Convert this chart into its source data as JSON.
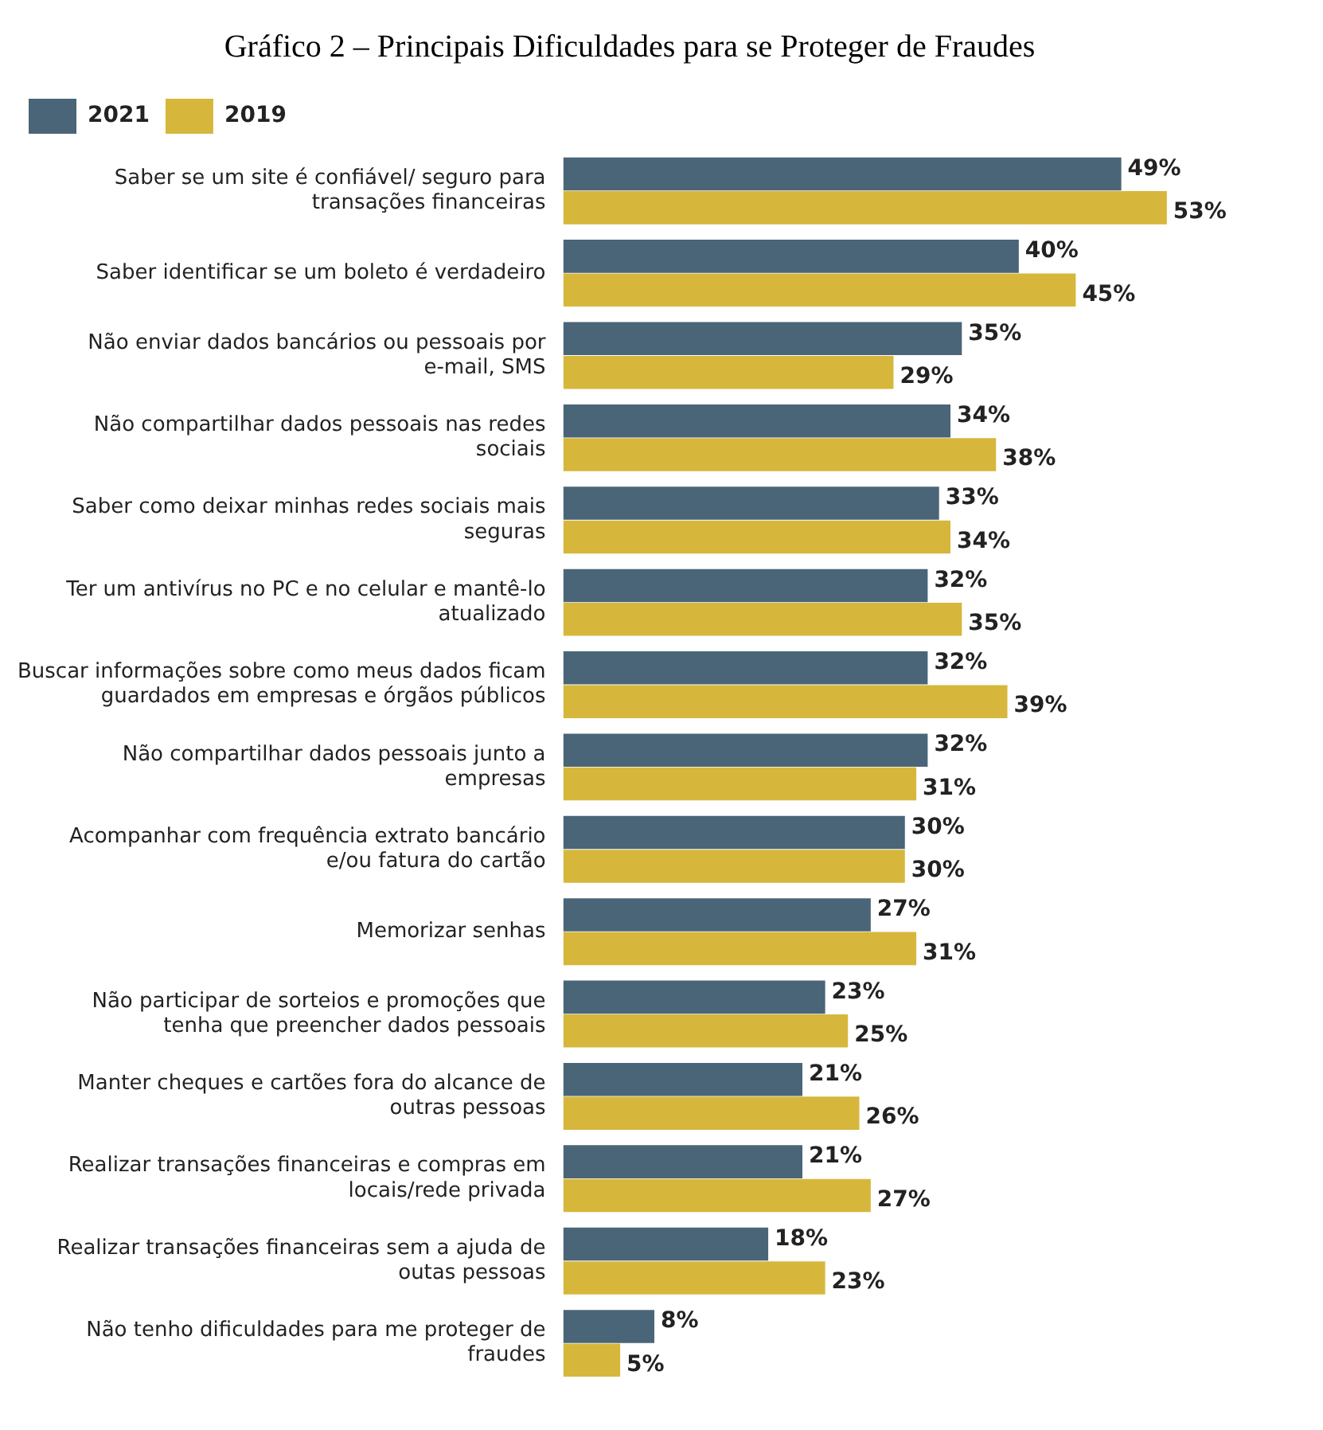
{
  "chart_data": {
    "type": "bar",
    "orientation": "horizontal",
    "title": "Gráfico 2 – Principais Dificuldades para se Proteger de Fraudes",
    "categories": [
      "Saber se um site é confiável/ seguro para transações financeiras",
      "Saber identificar se um boleto é verdadeiro",
      "Não enviar dados bancários ou pessoais por e-mail, SMS",
      "Não compartilhar dados pessoais nas redes sociais",
      "Saber como deixar minhas redes sociais mais seguras",
      "Ter um antivírus no PC e no celular e mantê-lo atualizado",
      "Buscar informações sobre como meus dados ficam guardados em empresas e órgãos públicos",
      "Não compartilhar dados pessoais junto a empresas",
      "Acompanhar com frequência extrato bancário e/ou fatura do cartão",
      "Memorizar senhas",
      "Não participar de sorteios e promoções que tenha que preencher dados pessoais",
      "Manter cheques e cartões fora do alcance de outras pessoas",
      "Realizar transações financeiras e compras em locais/rede privada",
      "Realizar transações financeiras sem a ajuda de outas pessoas",
      "Não tenho dificuldades para me proteger de fraudes"
    ],
    "series": [
      {
        "name": "2021",
        "color": "#4a6577",
        "values": [
          49,
          40,
          35,
          34,
          33,
          32,
          32,
          32,
          30,
          27,
          23,
          21,
          21,
          18,
          8
        ],
        "value_labels": [
          "49%",
          "40%",
          "35%",
          "34%",
          "33%",
          "32%",
          "32%",
          "32%",
          "30%",
          "27%",
          "23%",
          "21%",
          "21%",
          "18%",
          "8%"
        ]
      },
      {
        "name": "2019",
        "color": "#d6b73c",
        "values": [
          53,
          45,
          29,
          38,
          34,
          35,
          39,
          31,
          30,
          31,
          25,
          26,
          27,
          23,
          5
        ],
        "value_labels": [
          "53%",
          "45%",
          "29%",
          "38%",
          "34%",
          "35%",
          "39%",
          "31%",
          "30%",
          "31%",
          "25%",
          "26%",
          "27%",
          "23%",
          "5%"
        ]
      }
    ],
    "legend": "top left",
    "grid": false,
    "tick_labels": "y"
  }
}
